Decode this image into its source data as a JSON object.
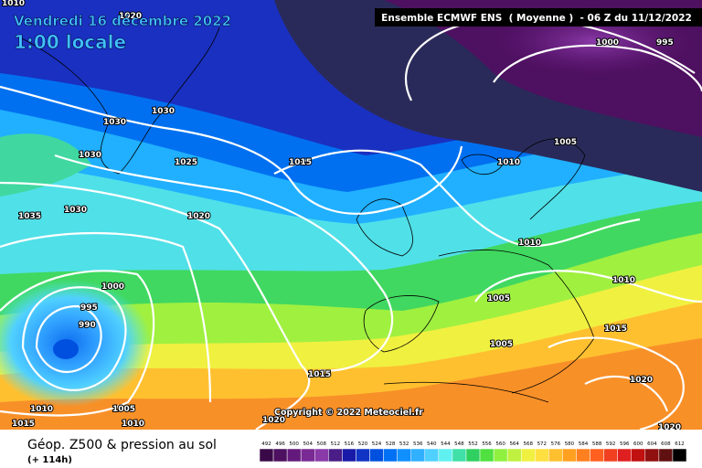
{
  "title": "Vendredi 16 décembre 2022",
  "subtitle": "1:00 locale",
  "header": "Ensemble ECMWF ENS  ( Moyenne )  - 06 Z du 11/12/2022",
  "copyright": "Copyright © 2022 Meteociel.fr",
  "footer": {
    "title": "Géop. Z500 & pression au sol",
    "lead_time": "(+ 114h)"
  },
  "isobar_labels": [
    1010,
    1020,
    1000,
    995,
    1030,
    1030,
    1030,
    1025,
    1015,
    1010,
    1005,
    1035,
    1030,
    1020,
    1010,
    1000,
    995,
    990,
    1005,
    1010,
    1015,
    1005,
    1015,
    1020,
    1010,
    1005,
    1015,
    1010,
    1020,
    1020
  ],
  "colorbar": {
    "values": [
      492,
      496,
      500,
      504,
      508,
      512,
      516,
      520,
      524,
      528,
      532,
      536,
      540,
      544,
      548,
      552,
      556,
      560,
      564,
      568,
      572,
      576,
      580,
      584,
      588,
      592,
      596,
      600,
      604,
      608,
      612
    ],
    "colors": [
      "#3a0a48",
      "#4e1060",
      "#641a7c",
      "#7a2a94",
      "#8a3aa8",
      "#4a1e86",
      "#1a1aa8",
      "#1034c4",
      "#0050e0",
      "#0070f4",
      "#1090ff",
      "#30b0ff",
      "#50d0ff",
      "#60f0f0",
      "#40e0a8",
      "#30d060",
      "#50e040",
      "#90f040",
      "#c0f040",
      "#f0f040",
      "#ffe040",
      "#ffc030",
      "#ffa020",
      "#ff8020",
      "#ff6020",
      "#f04020",
      "#e02020",
      "#c01010",
      "#901010",
      "#601010",
      "#000000"
    ]
  }
}
